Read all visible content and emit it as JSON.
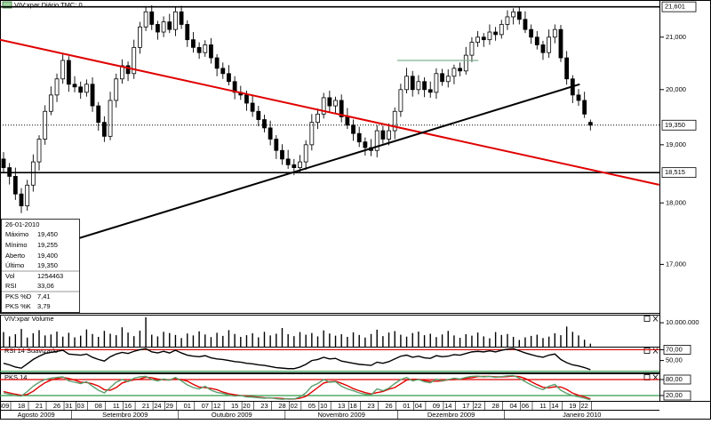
{
  "header": {
    "title": "VIV:xpar Diário TMC: 0"
  },
  "info": {
    "date": "26-01-2010",
    "rows": [
      [
        "Máximo",
        "19,450"
      ],
      [
        "Mínimo",
        "19,255"
      ],
      [
        "Aberto",
        "19,400"
      ],
      [
        "Último",
        "19,350"
      ],
      [
        "Vol",
        "1254463"
      ],
      [
        "RSI",
        "33,06"
      ]
    ],
    "pks_values": [
      "7,41",
      "3,79"
    ]
  },
  "chart_data": [
    {
      "type": "candlestick",
      "log_scale": true,
      "ylim": [
        16250,
        21720
      ],
      "yticks": [
        {
          "value": 17000,
          "label": "17,000"
        },
        {
          "value": 18000,
          "label": "18,000"
        },
        {
          "value": 19000,
          "label": "19,000"
        },
        {
          "value": 20000,
          "label": "20,000"
        },
        {
          "value": 21000,
          "label": "21,000"
        }
      ],
      "levels": [
        {
          "value": 21601,
          "label": "21,601",
          "style": "solid"
        },
        {
          "value": 18515,
          "label": "18,515",
          "style": "solid"
        },
        {
          "value": 19350,
          "label": "19,350",
          "style": "dotted"
        }
      ],
      "trendlines": [
        {
          "color": "#e00000",
          "points": [
            [
              -0.6,
              20948
            ],
            [
              110.6,
              18306
            ]
          ]
        },
        {
          "color": "#000000",
          "points": [
            [
              3.9,
              17160
            ],
            [
              97.2,
              20100
            ]
          ]
        },
        {
          "color": "#7fb08f",
          "points": [
            [
              66.4,
              20550
            ],
            [
              80.1,
              20550
            ]
          ]
        }
      ],
      "up_color": "#ffffff",
      "down_color": "#000000",
      "open": [
        18750,
        18600,
        18450,
        18150,
        17950,
        18300,
        18700,
        19100,
        19600,
        19900,
        20200,
        20550,
        20100,
        20050,
        19950,
        20100,
        19700,
        19400,
        19150,
        19800,
        20200,
        20450,
        20300,
        20800,
        21200,
        21500,
        21250,
        21100,
        21300,
        21150,
        21500,
        21250,
        20950,
        20800,
        20700,
        20850,
        20600,
        20400,
        20300,
        20150,
        19950,
        19900,
        19750,
        19600,
        19450,
        19300,
        19100,
        18900,
        18750,
        18650,
        18600,
        18700,
        19000,
        19400,
        19550,
        19850,
        19700,
        19800,
        19500,
        19350,
        19200,
        19050,
        18950,
        18900,
        19250,
        19100,
        19250,
        19600,
        20000,
        20250,
        20000,
        20150,
        20000,
        19950,
        20300,
        20150,
        20250,
        20400,
        20350,
        20650,
        20900,
        21000,
        20950,
        21100,
        21050,
        21250,
        21400,
        21500,
        21350,
        21150,
        21000,
        20850,
        20700,
        21000,
        21150,
        20600,
        20200,
        19900,
        19800,
        19400
      ],
      "high": [
        18870,
        18680,
        18600,
        18250,
        18390,
        18830,
        19170,
        19710,
        20060,
        20300,
        20670,
        20630,
        20250,
        20150,
        20190,
        20230,
        19770,
        19510,
        19960,
        20300,
        20570,
        20530,
        20950,
        21300,
        21590,
        21630,
        21320,
        21410,
        21460,
        21600,
        21620,
        21330,
        21100,
        20900,
        20940,
        20980,
        20670,
        20510,
        20460,
        20250,
        20070,
        19980,
        19900,
        19700,
        19540,
        19430,
        19170,
        19010,
        18910,
        18750,
        18820,
        19080,
        19550,
        19650,
        19940,
        19980,
        19870,
        19910,
        19660,
        19450,
        19320,
        19130,
        19100,
        19350,
        19340,
        19380,
        19670,
        20110,
        20410,
        20350,
        20270,
        20230,
        20150,
        20400,
        20390,
        20380,
        20470,
        20510,
        20810,
        21000,
        21120,
        21080,
        21250,
        21200,
        21340,
        21530,
        21570,
        21610,
        21510,
        21250,
        21120,
        20930,
        21150,
        21250,
        21240,
        20730,
        20270,
        20010,
        19960,
        19450
      ],
      "low": [
        18510,
        18310,
        18050,
        17830,
        17870,
        18190,
        18550,
        19000,
        19530,
        19770,
        20110,
        19960,
        19950,
        19830,
        19870,
        19590,
        19250,
        19050,
        19080,
        19670,
        20110,
        20160,
        20200,
        20680,
        21120,
        21140,
        20950,
        21000,
        21080,
        21020,
        21160,
        20810,
        20700,
        20580,
        20620,
        20490,
        20250,
        20200,
        20080,
        19820,
        19810,
        19610,
        19500,
        19330,
        19220,
        18990,
        18750,
        18650,
        18580,
        18470,
        18510,
        18560,
        18900,
        19280,
        19470,
        19590,
        19550,
        19400,
        19280,
        19070,
        18960,
        18810,
        18800,
        18780,
        19020,
        18990,
        19100,
        19500,
        19930,
        19870,
        19910,
        19860,
        19850,
        19830,
        20070,
        20040,
        20100,
        20250,
        20280,
        20520,
        20810,
        20810,
        20850,
        20930,
        20970,
        21140,
        21250,
        21250,
        21080,
        20870,
        20760,
        20560,
        20600,
        20880,
        20520,
        20090,
        19750,
        19700,
        19480,
        19255
      ],
      "close": [
        18600,
        18450,
        18150,
        17950,
        18300,
        18700,
        19100,
        19600,
        19900,
        20200,
        20550,
        20100,
        20050,
        19950,
        20100,
        19700,
        19400,
        19150,
        19800,
        20200,
        20450,
        20300,
        20800,
        21200,
        21500,
        21250,
        21100,
        21300,
        21150,
        21500,
        21250,
        20950,
        20800,
        20700,
        20850,
        20600,
        20400,
        20300,
        20150,
        19950,
        19900,
        19750,
        19600,
        19450,
        19300,
        19100,
        18900,
        18750,
        18650,
        18600,
        18700,
        19000,
        19400,
        19550,
        19850,
        19700,
        19800,
        19500,
        19350,
        19200,
        19050,
        18950,
        18900,
        19250,
        19100,
        19250,
        19600,
        20000,
        20250,
        20000,
        20150,
        20000,
        19950,
        20300,
        20150,
        20250,
        20400,
        20350,
        20650,
        20900,
        21000,
        20950,
        21100,
        21050,
        21250,
        21400,
        21500,
        21350,
        21150,
        21000,
        20850,
        20700,
        21000,
        21150,
        20600,
        20200,
        19900,
        19800,
        19550,
        19350
      ],
      "xticks": [
        {
          "value": 0,
          "label": "309"
        },
        {
          "value": 3,
          "label": "18"
        },
        {
          "value": 6,
          "label": "21"
        },
        {
          "value": 9,
          "label": "26"
        },
        {
          "value": 11,
          "label": "31"
        },
        {
          "value": 13,
          "label": "03"
        },
        {
          "value": 16,
          "label": "08"
        },
        {
          "value": 19,
          "label": "11"
        },
        {
          "value": 21,
          "label": "16"
        },
        {
          "value": 24,
          "label": "21"
        },
        {
          "value": 26,
          "label": "24"
        },
        {
          "value": 28,
          "label": "29"
        },
        {
          "value": 31,
          "label": "01"
        },
        {
          "value": 34,
          "label": "07"
        },
        {
          "value": 36,
          "label": "12"
        },
        {
          "value": 39,
          "label": "15"
        },
        {
          "value": 41,
          "label": "20"
        },
        {
          "value": 44,
          "label": "23"
        },
        {
          "value": 47,
          "label": "28"
        },
        {
          "value": 49,
          "label": "02"
        },
        {
          "value": 52,
          "label": "05"
        },
        {
          "value": 54,
          "label": "10"
        },
        {
          "value": 57,
          "label": "13"
        },
        {
          "value": 59,
          "label": "18"
        },
        {
          "value": 62,
          "label": "23"
        },
        {
          "value": 65,
          "label": "26"
        },
        {
          "value": 68,
          "label": "01"
        },
        {
          "value": 70,
          "label": "04"
        },
        {
          "value": 73,
          "label": "09"
        },
        {
          "value": 75,
          "label": "14"
        },
        {
          "value": 78,
          "label": "17"
        },
        {
          "value": 80,
          "label": "22"
        },
        {
          "value": 83,
          "label": "28"
        },
        {
          "value": 86,
          "label": "04"
        },
        {
          "value": 88,
          "label": "06"
        },
        {
          "value": 91,
          "label": "11"
        },
        {
          "value": 93,
          "label": "14"
        },
        {
          "value": 96,
          "label": "19"
        },
        {
          "value": 98,
          "label": "22"
        }
      ],
      "months": [
        {
          "label": "Agosto 2009",
          "start": 0
        },
        {
          "label": "Setembro 2009",
          "start": 12
        },
        {
          "label": "Outubro 2009",
          "start": 30
        },
        {
          "label": "Novembro 2009",
          "start": 48
        },
        {
          "label": "Dezembro 2009",
          "start": 67
        },
        {
          "label": "Janeiro 2010",
          "start": 85
        }
      ]
    },
    {
      "type": "bar",
      "title": "VIV:xpar Volume",
      "color": "#000000",
      "ylim": [
        0,
        13000000
      ],
      "yticks": [
        {
          "value": 10000000,
          "label": "10.000.000"
        }
      ],
      "values": [
        6100000,
        4300000,
        5200000,
        7400000,
        3800000,
        5600000,
        6900000,
        4700000,
        5100000,
        6300000,
        4200000,
        5800000,
        3900000,
        4600000,
        7200000,
        5300000,
        4100000,
        6600000,
        5400000,
        4800000,
        8100000,
        5900000,
        4400000,
        6700000,
        12300000,
        5000000,
        4300000,
        6200000,
        5700000,
        4900000,
        3600000,
        5500000,
        4700000,
        6400000,
        5100000,
        4000000,
        5800000,
        4500000,
        6900000,
        5300000,
        4100000,
        4800000,
        5600000,
        3900000,
        6200000,
        4700000,
        5400000,
        7800000,
        5200000,
        4400000,
        6100000,
        5000000,
        5700000,
        4300000,
        6800000,
        5500000,
        4600000,
        5200000,
        4100000,
        6000000,
        4900000,
        3800000,
        5300000,
        7100000,
        4400000,
        5900000,
        6500000,
        5000000,
        4200000,
        5700000,
        6300000,
        4800000,
        5400000,
        4000000,
        5100000,
        6600000,
        4700000,
        3700000,
        5200000,
        4600000,
        5900000,
        4300000,
        3500000,
        6100000,
        4900000,
        5300000,
        4100000,
        2800000,
        3900000,
        4500000,
        5000000,
        3600000,
        4200000,
        5600000,
        4800000,
        8400000,
        6200000,
        4700000,
        2900000,
        1254463
      ]
    },
    {
      "type": "line",
      "title": "RSI 14 Suavizado",
      "color": "#000000",
      "ylim": [
        28,
        74
      ],
      "yticks": [
        {
          "value": 70,
          "label": "70,00",
          "boxed": true
        },
        {
          "value": 50,
          "label": "50,00"
        }
      ],
      "levels": [
        {
          "value": 70,
          "color": "#e00000"
        },
        {
          "value": 30,
          "color": "#2e9a4a"
        }
      ],
      "series": [
        {
          "color": "#000000",
          "values": [
            45,
            42,
            38,
            36,
            44,
            52,
            58,
            63,
            65,
            67,
            69,
            62,
            61,
            60,
            62,
            56,
            52,
            49,
            57,
            62,
            65,
            63,
            67,
            70,
            72,
            66,
            64,
            67,
            64,
            69,
            64,
            60,
            58,
            57,
            59,
            55,
            53,
            52,
            50,
            48,
            47,
            45,
            44,
            42,
            41,
            39,
            37,
            36,
            35,
            35,
            38,
            43,
            50,
            52,
            56,
            53,
            54,
            49,
            47,
            45,
            43,
            42,
            41,
            47,
            45,
            48,
            53,
            58,
            60,
            56,
            58,
            55,
            54,
            59,
            57,
            58,
            61,
            60,
            63,
            66,
            67,
            66,
            68,
            66,
            69,
            71,
            72,
            68,
            64,
            61,
            58,
            56,
            60,
            62,
            52,
            46,
            42,
            40,
            37,
            33.06
          ]
        }
      ]
    },
    {
      "type": "line",
      "title": "PKS 14",
      "ylim": [
        0,
        100
      ],
      "yticks": [
        {
          "value": 80,
          "label": "80,00",
          "boxed": true
        },
        {
          "value": 20,
          "label": "20,00",
          "boxed": true
        }
      ],
      "levels": [
        {
          "value": 80,
          "color": "#e00000"
        },
        {
          "value": 20,
          "color": "#2e9a4a"
        }
      ],
      "series": [
        {
          "name": "PKS %D",
          "color": "#e00000",
          "values": [
            35,
            30,
            25,
            21,
            24,
            36,
            53,
            68,
            78,
            84,
            88,
            84,
            78,
            70,
            69,
            64,
            56,
            42,
            40,
            50,
            67,
            74,
            79,
            82,
            89,
            87,
            82,
            79,
            78,
            83,
            80,
            74,
            62,
            52,
            50,
            47,
            42,
            33,
            27,
            23,
            20,
            18,
            16,
            14,
            12,
            11,
            10,
            9,
            7,
            7,
            10,
            17,
            33,
            50,
            67,
            72,
            74,
            66,
            57,
            46,
            38,
            31,
            26,
            31,
            35,
            44,
            50,
            64,
            78,
            81,
            81,
            76,
            73,
            74,
            75,
            79,
            80,
            82,
            85,
            87,
            91,
            92,
            92,
            90,
            90,
            91,
            93,
            91,
            84,
            72,
            61,
            51,
            49,
            53,
            52,
            43,
            29,
            21,
            15,
            7.41
          ]
        },
        {
          "name": "PKS %K",
          "color": "#5aa06e",
          "values": [
            30,
            25,
            20,
            18,
            35,
            55,
            70,
            80,
            85,
            88,
            90,
            75,
            70,
            65,
            72,
            55,
            40,
            30,
            50,
            70,
            80,
            72,
            85,
            90,
            92,
            80,
            75,
            82,
            78,
            88,
            75,
            60,
            50,
            45,
            55,
            40,
            32,
            28,
            22,
            18,
            20,
            15,
            14,
            12,
            10,
            12,
            8,
            6,
            8,
            7,
            15,
            30,
            55,
            65,
            80,
            70,
            72,
            55,
            45,
            38,
            30,
            25,
            22,
            45,
            38,
            48,
            65,
            80,
            88,
            75,
            80,
            72,
            68,
            82,
            75,
            80,
            85,
            82,
            88,
            92,
            93,
            90,
            92,
            88,
            91,
            94,
            95,
            85,
            72,
            60,
            50,
            42,
            55,
            62,
            40,
            28,
            20,
            15,
            10,
            3.79
          ]
        }
      ]
    }
  ]
}
